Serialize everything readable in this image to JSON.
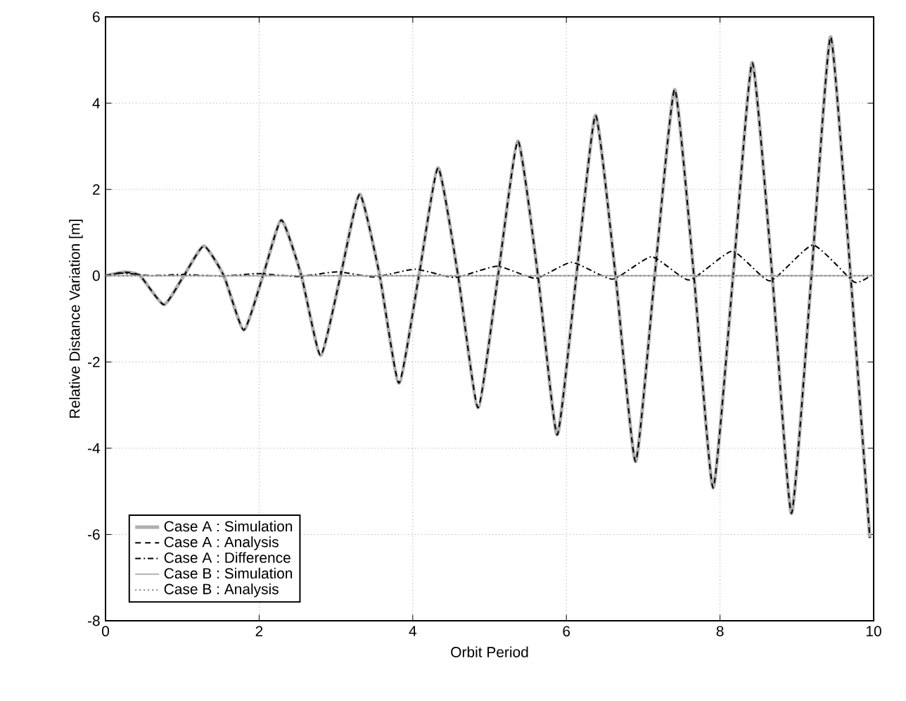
{
  "chart_data": {
    "type": "line",
    "xlabel": "Orbit Period",
    "ylabel": "Relative Distance Variation [m]",
    "xlim": [
      0,
      10
    ],
    "ylim": [
      -8,
      6
    ],
    "xticks": [
      0,
      2,
      4,
      6,
      8,
      10
    ],
    "yticks": [
      -8,
      -6,
      -4,
      -2,
      0,
      2,
      4,
      6
    ],
    "grid": true,
    "legend": "bottom left",
    "marker": "none",
    "series": [
      {
        "name": "Case A : Simulation",
        "color": "#b0b0b0",
        "line_style": "solid",
        "x": [
          0,
          0.25,
          0.45,
          0.76,
          1.02,
          1.28,
          1.54,
          1.8,
          2.05,
          2.29,
          2.55,
          2.8,
          3.06,
          3.31,
          3.57,
          3.82,
          4.08,
          4.33,
          4.59,
          4.85,
          5.11,
          5.37,
          5.63,
          5.88,
          6.13,
          6.38,
          6.64,
          6.9,
          7.15,
          7.41,
          7.66,
          7.91,
          8.17,
          8.42,
          8.68,
          8.93,
          9.19,
          9.44,
          9.7,
          9.95
        ],
        "values": [
          0,
          0.08,
          0,
          -0.67,
          0,
          0.69,
          0,
          -1.26,
          0,
          1.29,
          0,
          -1.85,
          0,
          1.89,
          0,
          -2.49,
          0,
          2.5,
          0,
          -3.06,
          0,
          3.12,
          0,
          -3.69,
          0,
          3.72,
          0,
          -4.31,
          0,
          4.32,
          0,
          -4.92,
          0,
          4.94,
          0,
          -5.51,
          0,
          5.54,
          0,
          -6.08
        ]
      },
      {
        "name": "Case A : Analysis",
        "color": "#000000",
        "line_style": "dashed",
        "x": [
          0,
          0.25,
          0.45,
          0.76,
          1.02,
          1.28,
          1.54,
          1.8,
          2.05,
          2.29,
          2.55,
          2.8,
          3.06,
          3.31,
          3.57,
          3.82,
          4.08,
          4.33,
          4.59,
          4.85,
          5.11,
          5.37,
          5.63,
          5.88,
          6.13,
          6.38,
          6.64,
          6.9,
          7.15,
          7.41,
          7.66,
          7.91,
          8.17,
          8.42,
          8.68,
          8.93,
          9.19,
          9.44,
          9.7,
          9.95
        ],
        "values": [
          0,
          0.08,
          0,
          -0.67,
          0,
          0.69,
          0,
          -1.26,
          0,
          1.29,
          0,
          -1.85,
          0,
          1.89,
          0,
          -2.49,
          0,
          2.5,
          0,
          -3.06,
          0,
          3.12,
          0,
          -3.69,
          0,
          3.72,
          0,
          -4.31,
          0,
          4.32,
          0,
          -4.92,
          0,
          4.94,
          0,
          -5.51,
          0,
          5.54,
          0,
          -6.08
        ]
      },
      {
        "name": "Case A : Difference",
        "color": "#000000",
        "line_style": "dashdot",
        "x": [
          0,
          0.2,
          0.6,
          1.0,
          1.5,
          2.0,
          2.5,
          3.02,
          3.5,
          4.03,
          4.55,
          5.1,
          5.6,
          6.07,
          6.6,
          7.11,
          7.6,
          8.16,
          8.65,
          9.21,
          9.75,
          10
        ],
        "values": [
          0,
          0.06,
          0,
          0.03,
          -0.01,
          0.05,
          -0.02,
          0.09,
          -0.03,
          0.15,
          -0.04,
          0.22,
          -0.06,
          0.31,
          -0.08,
          0.44,
          -0.1,
          0.57,
          -0.12,
          0.71,
          -0.15,
          0.05
        ]
      },
      {
        "name": "Case B : Simulation",
        "color": "#b0b0b0",
        "line_style": "solid",
        "x": [
          0,
          2.5,
          5,
          7.5,
          10
        ],
        "values": [
          0,
          0,
          0,
          0,
          0
        ]
      },
      {
        "name": "Case B : Analysis",
        "color": "#808080",
        "line_style": "dotted",
        "x": [
          0,
          2.5,
          5,
          7.5,
          10
        ],
        "values": [
          0,
          0,
          0,
          0,
          0
        ]
      }
    ]
  }
}
